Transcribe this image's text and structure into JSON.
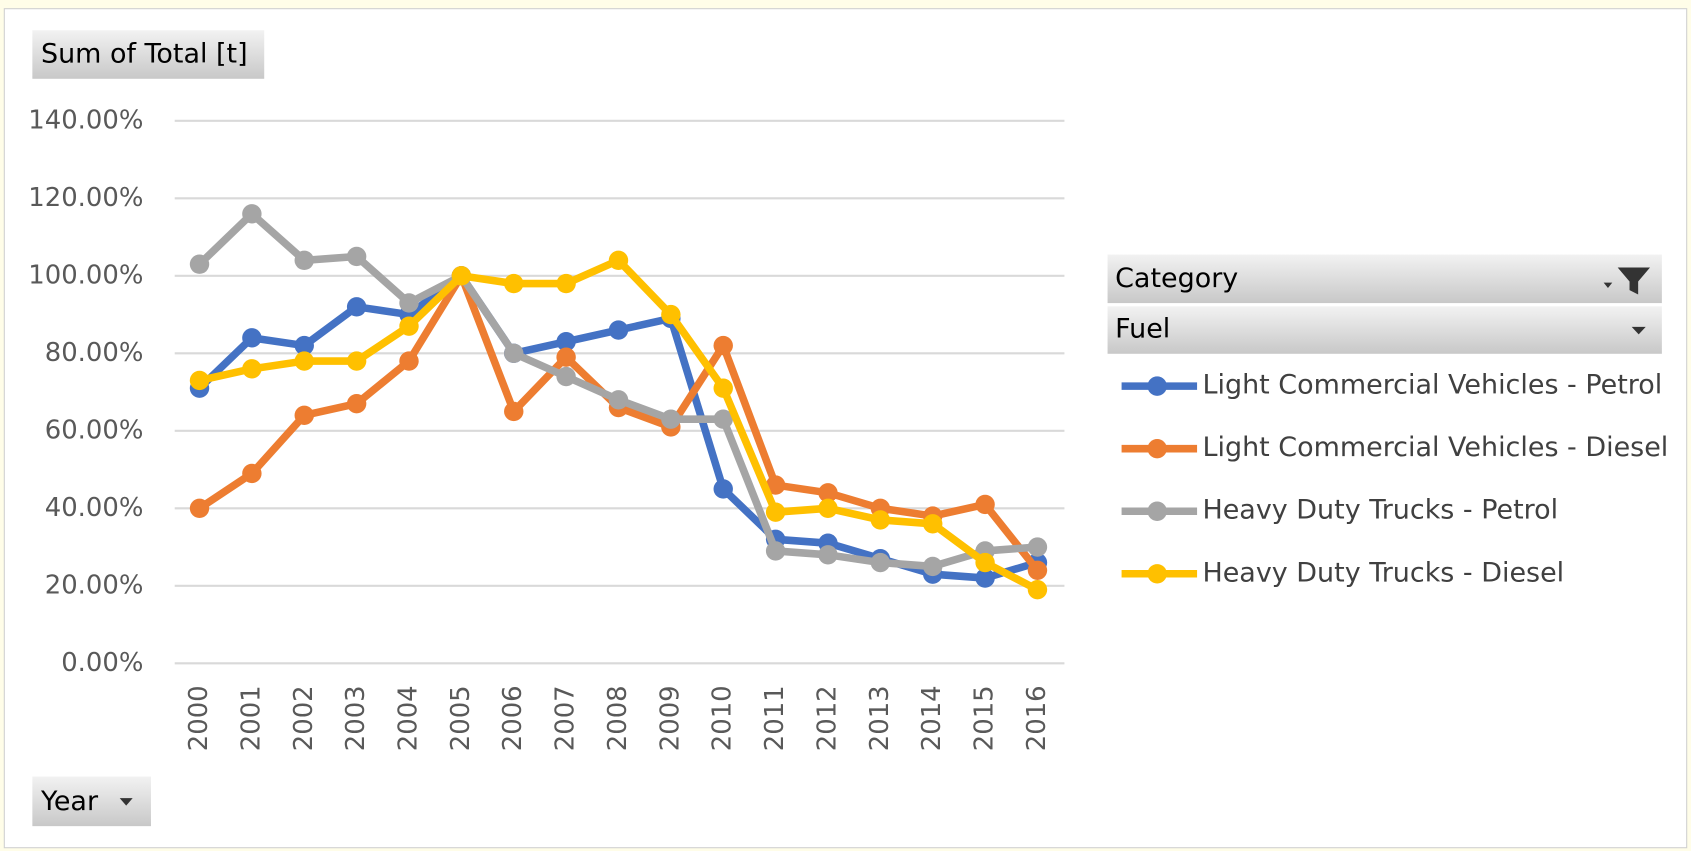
{
  "chart_data": {
    "type": "line",
    "value_field": "Sum of Total [t]",
    "axis_field": "Year",
    "legend_fields": [
      "Category",
      "Fuel"
    ],
    "categories": [
      "2000",
      "2001",
      "2002",
      "2003",
      "2004",
      "2005",
      "2006",
      "2007",
      "2008",
      "2009",
      "2010",
      "2011",
      "2012",
      "2013",
      "2014",
      "2015",
      "2016"
    ],
    "series": [
      {
        "name": "Light Commercial Vehicles - Petrol",
        "color": "#4472c4",
        "values": [
          71,
          84,
          82,
          92,
          90,
          100,
          80,
          83,
          86,
          89,
          45,
          32,
          31,
          27,
          23,
          22,
          26
        ]
      },
      {
        "name": "Light Commercial Vehicles - Diesel",
        "color": "#ed7d31",
        "values": [
          40,
          49,
          64,
          67,
          78,
          100,
          65,
          79,
          66,
          61,
          82,
          46,
          44,
          40,
          38,
          41,
          24
        ]
      },
      {
        "name": "Heavy Duty Trucks - Petrol",
        "color": "#a5a5a5",
        "values": [
          103,
          116,
          104,
          105,
          93,
          100,
          80,
          74,
          68,
          63,
          63,
          29,
          28,
          26,
          25,
          29,
          30
        ]
      },
      {
        "name": "Heavy Duty Trucks - Diesel",
        "color": "#ffc000",
        "values": [
          73,
          76,
          78,
          78,
          87,
          100,
          98,
          98,
          104,
          90,
          71,
          39,
          40,
          37,
          36,
          26,
          19
        ]
      }
    ],
    "ylim": [
      0,
      140
    ],
    "yticks": [
      {
        "value": 0,
        "label": "0.00%"
      },
      {
        "value": 20,
        "label": "20.00%"
      },
      {
        "value": 40,
        "label": "40.00%"
      },
      {
        "value": 60,
        "label": "60.00%"
      },
      {
        "value": 80,
        "label": "80.00%"
      },
      {
        "value": 100,
        "label": "100.00%"
      },
      {
        "value": 120,
        "label": "120.00%"
      },
      {
        "value": 140,
        "label": "140.00%"
      }
    ],
    "grid": true,
    "legend_position": "right"
  }
}
